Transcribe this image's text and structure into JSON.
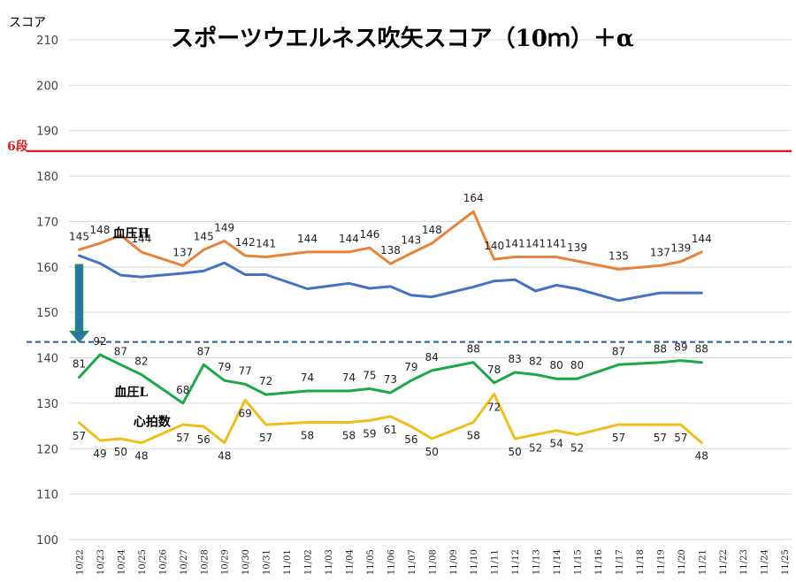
{
  "chart_data": {
    "type": "line",
    "title": "スポーツウエルネス吹矢スコア（10ｍ）＋α",
    "ylabel": "スコア",
    "xlabel": "",
    "ylim": [
      100,
      210
    ],
    "yticks": [
      100,
      110,
      120,
      130,
      140,
      150,
      160,
      170,
      180,
      190,
      200,
      210
    ],
    "grid": true,
    "x": [
      "10/22",
      "10/23",
      "10/24",
      "10/25",
      "10/26",
      "10/27",
      "10/28",
      "10/29",
      "10/30",
      "10/31",
      "11/01",
      "11/02",
      "11/03",
      "11/04",
      "11/05",
      "11/06",
      "11/07",
      "11/08",
      "11/09",
      "11/10",
      "11/11",
      "11/12",
      "11/13",
      "11/14",
      "11/15",
      "11/16",
      "11/17",
      "11/18",
      "11/19",
      "11/20",
      "11/21",
      "11/22",
      "11/23",
      "11/24",
      "11/25"
    ],
    "reference_lines": [
      {
        "name": "6段",
        "value": 185.5,
        "color": "#e02020",
        "style": "solid"
      },
      {
        "value": 143.5,
        "color": "#1f5fa8",
        "style": "dashed"
      }
    ],
    "series": [
      {
        "name": "血圧H",
        "color": "#e8833a",
        "points": [
          {
            "x": "10/22",
            "y": 163.8,
            "label": "145"
          },
          {
            "x": "10/23",
            "y": 165.2,
            "label": "148"
          },
          {
            "x": "10/24",
            "y": 167.0,
            "label": ""
          },
          {
            "x": "10/25",
            "y": 163.3,
            "label": "144"
          },
          {
            "x": "10/27",
            "y": 160.3,
            "label": "137"
          },
          {
            "x": "10/28",
            "y": 163.8,
            "label": "145"
          },
          {
            "x": "10/29",
            "y": 165.7,
            "label": "149"
          },
          {
            "x": "10/30",
            "y": 162.5,
            "label": "142"
          },
          {
            "x": "10/31",
            "y": 162.2,
            "label": "141"
          },
          {
            "x": "11/02",
            "y": 163.3,
            "label": "144"
          },
          {
            "x": "11/04",
            "y": 163.3,
            "label": "144"
          },
          {
            "x": "11/05",
            "y": 164.2,
            "label": "146"
          },
          {
            "x": "11/06",
            "y": 160.7,
            "label": "138"
          },
          {
            "x": "11/07",
            "y": 163.0,
            "label": "143"
          },
          {
            "x": "11/08",
            "y": 165.2,
            "label": "148"
          },
          {
            "x": "11/10",
            "y": 172.2,
            "label": "164"
          },
          {
            "x": "11/11",
            "y": 161.7,
            "label": "140"
          },
          {
            "x": "11/12",
            "y": 162.2,
            "label": "141"
          },
          {
            "x": "11/13",
            "y": 162.2,
            "label": "141"
          },
          {
            "x": "11/14",
            "y": 162.2,
            "label": "141"
          },
          {
            "x": "11/15",
            "y": 161.3,
            "label": "139"
          },
          {
            "x": "11/17",
            "y": 159.5,
            "label": "135"
          },
          {
            "x": "11/19",
            "y": 160.3,
            "label": "137"
          },
          {
            "x": "11/20",
            "y": 161.2,
            "label": "139"
          },
          {
            "x": "11/21",
            "y": 163.3,
            "label": "144"
          }
        ]
      },
      {
        "name": "",
        "color": "#4472c4",
        "points": [
          {
            "x": "10/22",
            "y": 162.5
          },
          {
            "x": "10/23",
            "y": 160.8
          },
          {
            "x": "10/24",
            "y": 158.2
          },
          {
            "x": "10/25",
            "y": 157.8
          },
          {
            "x": "10/27",
            "y": 158.6
          },
          {
            "x": "10/28",
            "y": 159.1
          },
          {
            "x": "10/29",
            "y": 160.9
          },
          {
            "x": "10/30",
            "y": 158.3
          },
          {
            "x": "10/31",
            "y": 158.3
          },
          {
            "x": "11/02",
            "y": 155.2
          },
          {
            "x": "11/04",
            "y": 156.4
          },
          {
            "x": "11/05",
            "y": 155.3
          },
          {
            "x": "11/06",
            "y": 155.7
          },
          {
            "x": "11/07",
            "y": 153.8
          },
          {
            "x": "11/08",
            "y": 153.4
          },
          {
            "x": "11/10",
            "y": 155.6
          },
          {
            "x": "11/11",
            "y": 156.9
          },
          {
            "x": "11/12",
            "y": 157.2
          },
          {
            "x": "11/13",
            "y": 154.7
          },
          {
            "x": "11/14",
            "y": 156.0
          },
          {
            "x": "11/15",
            "y": 155.2
          },
          {
            "x": "11/17",
            "y": 152.6
          },
          {
            "x": "11/19",
            "y": 154.3
          },
          {
            "x": "11/20",
            "y": 154.3
          },
          {
            "x": "11/21",
            "y": 154.3
          }
        ]
      },
      {
        "name": "血圧L",
        "color": "#1aa84a",
        "points": [
          {
            "x": "10/22",
            "y": 135.7,
            "label": "81"
          },
          {
            "x": "10/23",
            "y": 140.7,
            "label": "92"
          },
          {
            "x": "10/24",
            "y": 138.5,
            "label": "87"
          },
          {
            "x": "10/25",
            "y": 136.3,
            "label": "82"
          },
          {
            "x": "10/27",
            "y": 130.0,
            "label": "68"
          },
          {
            "x": "10/28",
            "y": 138.5,
            "label": "87"
          },
          {
            "x": "10/29",
            "y": 135.0,
            "label": "79"
          },
          {
            "x": "10/30",
            "y": 134.2,
            "label": "77"
          },
          {
            "x": "10/31",
            "y": 131.9,
            "label": "72"
          },
          {
            "x": "11/02",
            "y": 132.7,
            "label": "74"
          },
          {
            "x": "11/04",
            "y": 132.7,
            "label": "74"
          },
          {
            "x": "11/05",
            "y": 133.2,
            "label": "75"
          },
          {
            "x": "11/06",
            "y": 132.3,
            "label": "73"
          },
          {
            "x": "11/07",
            "y": 135.0,
            "label": "79"
          },
          {
            "x": "11/08",
            "y": 137.2,
            "label": "84"
          },
          {
            "x": "11/10",
            "y": 139.0,
            "label": "88"
          },
          {
            "x": "11/11",
            "y": 134.5,
            "label": "78"
          },
          {
            "x": "11/12",
            "y": 136.8,
            "label": "83"
          },
          {
            "x": "11/13",
            "y": 136.3,
            "label": "82"
          },
          {
            "x": "11/14",
            "y": 135.4,
            "label": "80"
          },
          {
            "x": "11/15",
            "y": 135.4,
            "label": "80"
          },
          {
            "x": "11/17",
            "y": 138.5,
            "label": "87"
          },
          {
            "x": "11/19",
            "y": 139.0,
            "label": "88"
          },
          {
            "x": "11/20",
            "y": 139.4,
            "label": "89"
          },
          {
            "x": "11/21",
            "y": 139.0,
            "label": "88"
          }
        ]
      },
      {
        "name": "心拍数",
        "color": "#f0be1a",
        "points": [
          {
            "x": "10/22",
            "y": 125.7,
            "label": "57"
          },
          {
            "x": "10/23",
            "y": 121.8,
            "label": "49"
          },
          {
            "x": "10/24",
            "y": 122.2,
            "label": "50"
          },
          {
            "x": "10/25",
            "y": 121.3,
            "label": "48"
          },
          {
            "x": "10/27",
            "y": 125.3,
            "label": "57"
          },
          {
            "x": "10/28",
            "y": 124.9,
            "label": "56"
          },
          {
            "x": "10/29",
            "y": 121.3,
            "label": "48"
          },
          {
            "x": "10/30",
            "y": 130.7,
            "label": "69"
          },
          {
            "x": "10/31",
            "y": 125.3,
            "label": "57"
          },
          {
            "x": "11/02",
            "y": 125.8,
            "label": "58"
          },
          {
            "x": "11/04",
            "y": 125.8,
            "label": "58"
          },
          {
            "x": "11/05",
            "y": 126.2,
            "label": "59"
          },
          {
            "x": "11/06",
            "y": 127.1,
            "label": "61"
          },
          {
            "x": "11/07",
            "y": 124.9,
            "label": "56"
          },
          {
            "x": "11/08",
            "y": 122.2,
            "label": "50"
          },
          {
            "x": "11/10",
            "y": 125.8,
            "label": "58"
          },
          {
            "x": "11/11",
            "y": 132.0,
            "label": "72"
          },
          {
            "x": "11/12",
            "y": 122.2,
            "label": "50"
          },
          {
            "x": "11/13",
            "y": 123.1,
            "label": "52"
          },
          {
            "x": "11/14",
            "y": 124.0,
            "label": "54"
          },
          {
            "x": "11/15",
            "y": 123.1,
            "label": "52"
          },
          {
            "x": "11/17",
            "y": 125.3,
            "label": "57"
          },
          {
            "x": "11/19",
            "y": 125.3,
            "label": "57"
          },
          {
            "x": "11/20",
            "y": 125.3,
            "label": "57"
          },
          {
            "x": "11/21",
            "y": 121.3,
            "label": "48"
          }
        ]
      }
    ],
    "annotations": [
      {
        "type": "arrow",
        "color": "#1a9a3a",
        "fill": "#2e6fb5",
        "from": {
          "x": "10/22",
          "y": 160.5
        },
        "to": {
          "x": "10/22",
          "y": 143.5
        }
      }
    ]
  }
}
